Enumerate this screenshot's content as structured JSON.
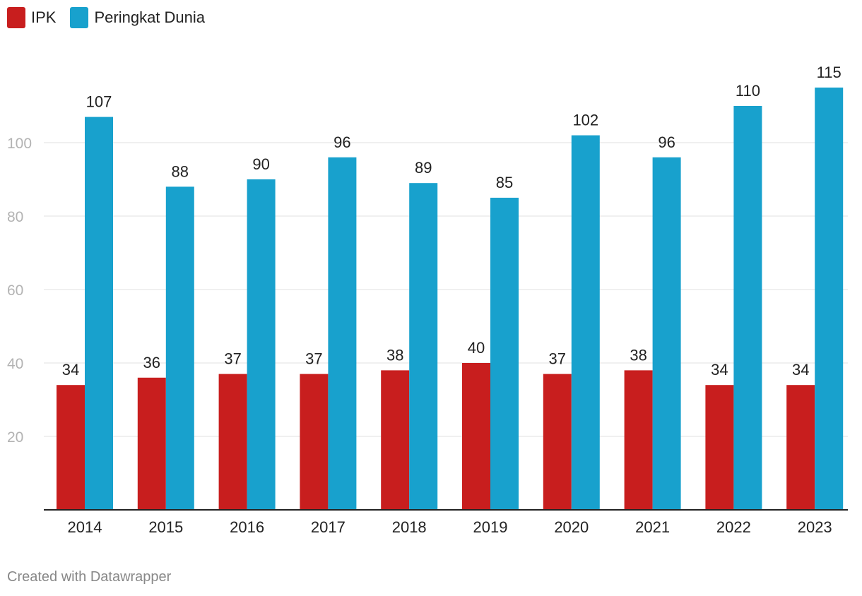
{
  "legend": {
    "series_a_label": "IPK",
    "series_b_label": "Peringkat Dunia"
  },
  "colors": {
    "ipk": "#c81e1e",
    "rank": "#18a1cd",
    "grid": "#e0e0e0",
    "baseline": "#222222"
  },
  "footer": {
    "credit": "Created with Datawrapper"
  },
  "chart_data": {
    "type": "bar",
    "title": "",
    "xlabel": "",
    "ylabel": "",
    "ylim": [
      0,
      120
    ],
    "yticks": [
      20,
      40,
      60,
      80,
      100
    ],
    "grid": true,
    "legend_position": "top-left",
    "categories": [
      "2014",
      "2015",
      "2016",
      "2017",
      "2018",
      "2019",
      "2020",
      "2021",
      "2022",
      "2023"
    ],
    "series": [
      {
        "name": "IPK",
        "values": [
          34,
          36,
          37,
          37,
          38,
          40,
          37,
          38,
          34,
          34
        ]
      },
      {
        "name": "Peringkat Dunia",
        "values": [
          107,
          88,
          90,
          96,
          89,
          85,
          102,
          96,
          110,
          115
        ]
      }
    ]
  }
}
